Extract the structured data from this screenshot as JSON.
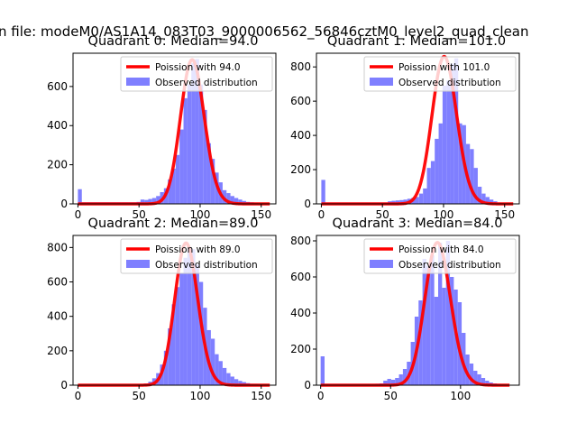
{
  "figure": {
    "suptitle": "n file: modeM0/AS1A14_083T03_9000006562_56846cztM0_level2_quad_clean"
  },
  "colors": {
    "hist": "#7f7fff",
    "fit": "#ff0000",
    "axis": "#000000"
  },
  "chart_data": [
    {
      "type": "bar",
      "title": "Quadrant 0: Median=94.0",
      "xlim": [
        -4,
        162
      ],
      "ylim": [
        0,
        770
      ],
      "xticks": [
        0,
        50,
        100,
        150
      ],
      "yticks": [
        0,
        200,
        400,
        600
      ],
      "bin_width": 3.2,
      "hist_x": [
        0,
        3.2,
        6.4,
        9.6,
        12.8,
        16,
        19.2,
        22.4,
        25.6,
        28.8,
        32,
        35.2,
        38.4,
        41.6,
        44.8,
        48,
        51.2,
        54.4,
        57.6,
        60.8,
        64,
        67.2,
        70.4,
        73.6,
        76.8,
        80,
        83.2,
        86.4,
        89.6,
        92.8,
        96,
        99.2,
        102.4,
        105.6,
        108.8,
        112,
        115.2,
        118.4,
        121.6,
        124.8,
        128,
        131.2,
        134.4,
        137.6,
        140.8,
        144,
        147.2,
        150.4,
        153.6,
        156.8
      ],
      "hist_counts": [
        75,
        8,
        8,
        8,
        8,
        8,
        8,
        8,
        8,
        8,
        8,
        8,
        8,
        8,
        8,
        10,
        22,
        20,
        25,
        30,
        40,
        60,
        80,
        125,
        180,
        250,
        380,
        540,
        610,
        720,
        740,
        610,
        480,
        310,
        230,
        160,
        110,
        70,
        55,
        40,
        30,
        22,
        15,
        10,
        8,
        5,
        3,
        2,
        1,
        1
      ],
      "poisson_mean": 94.0,
      "poisson_scale": 736,
      "fit_x_range": [
        0,
        157
      ],
      "legend": [
        "Poission with 94.0",
        "Observed distribution"
      ]
    },
    {
      "type": "bar",
      "title": "Quadrant 1: Median=101.0",
      "xlim": [
        -4,
        162
      ],
      "ylim": [
        0,
        880
      ],
      "xticks": [
        0,
        50,
        100,
        150
      ],
      "yticks": [
        0,
        200,
        400,
        600,
        800
      ],
      "bin_width": 3.2,
      "hist_x": [
        0,
        3.2,
        6.4,
        9.6,
        12.8,
        16,
        19.2,
        22.4,
        25.6,
        28.8,
        32,
        35.2,
        38.4,
        41.6,
        44.8,
        48,
        51.2,
        54.4,
        57.6,
        60.8,
        64,
        67.2,
        70.4,
        73.6,
        76.8,
        80,
        83.2,
        86.4,
        89.6,
        92.8,
        96,
        99.2,
        102.4,
        105.6,
        108.8,
        112,
        115.2,
        118.4,
        121.6,
        124.8,
        128,
        131.2,
        134.4,
        137.6,
        140.8,
        144,
        147.2,
        150.4,
        153.6,
        156.8
      ],
      "hist_counts": [
        140,
        8,
        8,
        8,
        8,
        8,
        8,
        8,
        8,
        8,
        8,
        8,
        8,
        8,
        8,
        8,
        8,
        15,
        18,
        20,
        22,
        25,
        30,
        35,
        40,
        60,
        90,
        210,
        250,
        380,
        470,
        690,
        720,
        820,
        850,
        470,
        460,
        350,
        320,
        210,
        100,
        60,
        40,
        25,
        15,
        8,
        5,
        3,
        2,
        1
      ],
      "poisson_mean": 101.0,
      "poisson_scale": 860,
      "fit_x_range": [
        0,
        157
      ],
      "legend": [
        "Poission with 101.0",
        "Observed distribution"
      ]
    },
    {
      "type": "bar",
      "title": "Quadrant 2: Median=89.0",
      "xlim": [
        -4,
        162
      ],
      "ylim": [
        0,
        870
      ],
      "xticks": [
        0,
        50,
        100,
        150
      ],
      "yticks": [
        0,
        200,
        400,
        600,
        800
      ],
      "bin_width": 3.2,
      "hist_x": [
        0,
        3.2,
        6.4,
        9.6,
        12.8,
        16,
        19.2,
        22.4,
        25.6,
        28.8,
        32,
        35.2,
        38.4,
        41.6,
        44.8,
        48,
        51.2,
        54.4,
        57.6,
        60.8,
        64,
        67.2,
        70.4,
        73.6,
        76.8,
        80,
        83.2,
        86.4,
        89.6,
        92.8,
        96,
        99.2,
        102.4,
        105.6,
        108.8,
        112,
        115.2,
        118.4,
        121.6,
        124.8,
        128,
        131.2,
        134.4,
        137.6,
        140.8,
        144,
        147.2,
        150.4,
        153.6,
        156.8
      ],
      "hist_counts": [
        3,
        3,
        3,
        3,
        3,
        3,
        3,
        3,
        3,
        3,
        3,
        3,
        3,
        3,
        3,
        4,
        6,
        10,
        20,
        40,
        70,
        120,
        200,
        330,
        470,
        570,
        650,
        740,
        800,
        790,
        700,
        600,
        450,
        320,
        270,
        180,
        140,
        100,
        70,
        50,
        35,
        25,
        18,
        12,
        8,
        6,
        4,
        3,
        2,
        1
      ],
      "poisson_mean": 89.0,
      "poisson_scale": 825,
      "fit_x_range": [
        0,
        157
      ],
      "legend": [
        "Poission with 89.0",
        "Observed distribution"
      ]
    },
    {
      "type": "bar",
      "title": "Quadrant 3: Median=84.0",
      "xlim": [
        -3,
        142
      ],
      "ylim": [
        0,
        830
      ],
      "xticks": [
        0,
        50,
        100
      ],
      "yticks": [
        0,
        200,
        400,
        600,
        800
      ],
      "bin_width": 2.8,
      "hist_x": [
        0,
        2.8,
        5.6,
        8.4,
        11.2,
        14,
        16.8,
        19.6,
        22.4,
        25.2,
        28,
        30.8,
        33.6,
        36.4,
        39.2,
        42,
        44.8,
        47.6,
        50.4,
        53.2,
        56,
        58.8,
        61.6,
        64.4,
        67.2,
        70,
        72.8,
        75.6,
        78.4,
        81.2,
        84,
        86.8,
        89.6,
        92.4,
        95.2,
        98,
        100.8,
        103.6,
        106.4,
        109.2,
        112,
        114.8,
        117.6,
        120.4,
        123.2,
        126,
        128.8,
        131.6
      ],
      "hist_counts": [
        160,
        6,
        6,
        6,
        6,
        6,
        6,
        6,
        6,
        6,
        6,
        6,
        6,
        6,
        8,
        10,
        25,
        35,
        30,
        40,
        60,
        90,
        130,
        240,
        380,
        470,
        700,
        660,
        720,
        490,
        790,
        540,
        800,
        600,
        530,
        460,
        290,
        170,
        120,
        80,
        60,
        40,
        25,
        15,
        10,
        6,
        4,
        2
      ],
      "poisson_mean": 84.0,
      "poisson_scale": 790,
      "fit_x_range": [
        0,
        135
      ],
      "legend": [
        "Poission with 84.0",
        "Observed distribution"
      ]
    }
  ]
}
